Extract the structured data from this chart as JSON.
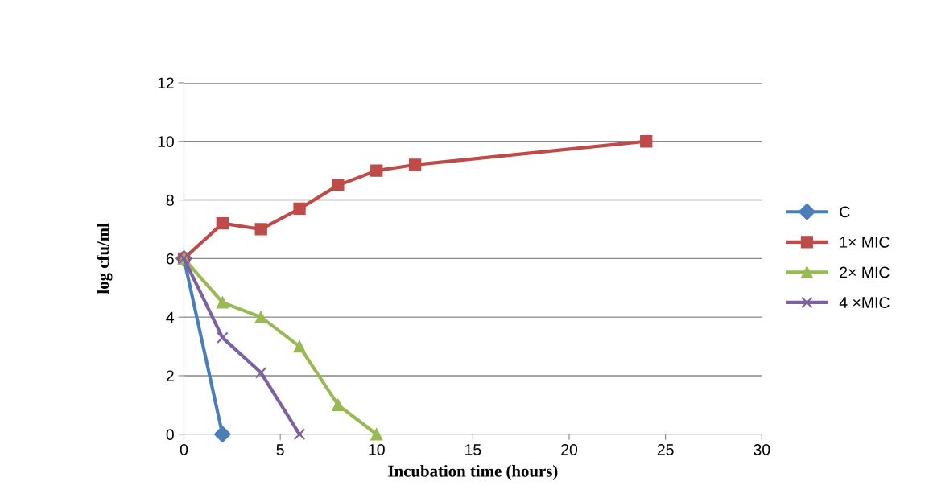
{
  "chart_data": {
    "type": "line",
    "xlabel": "Incubation time (hours)",
    "ylabel": "log cfu/ml",
    "xlim": [
      0,
      30
    ],
    "xticks": [
      0,
      5,
      10,
      15,
      20,
      25,
      30
    ],
    "ylim": [
      0,
      12
    ],
    "yticks": [
      0,
      2,
      4,
      6,
      8,
      10,
      12
    ],
    "grid": "y",
    "legend": "right",
    "line_style": "solid",
    "series": [
      {
        "name": "C",
        "color": "#4a7ebb",
        "marker": "diamond",
        "x": [
          0,
          2
        ],
        "values": [
          6,
          0
        ]
      },
      {
        "name": "1× MIC",
        "color": "#be4b48",
        "marker": "square",
        "x": [
          0,
          2,
          4,
          6,
          8,
          10,
          12,
          24
        ],
        "values": [
          6,
          7.2,
          7,
          7.7,
          8.5,
          9,
          9.2,
          10
        ]
      },
      {
        "name": "2× MIC",
        "color": "#98b954",
        "marker": "triangle",
        "x": [
          0,
          2,
          4,
          6,
          8,
          10
        ],
        "values": [
          6,
          4.5,
          4,
          3,
          1,
          0
        ]
      },
      {
        "name": "4 ×MIC",
        "color": "#7d60a0",
        "marker": "cross",
        "x": [
          0,
          2,
          4,
          6
        ],
        "values": [
          6,
          3.3,
          2.1,
          0
        ]
      }
    ]
  }
}
